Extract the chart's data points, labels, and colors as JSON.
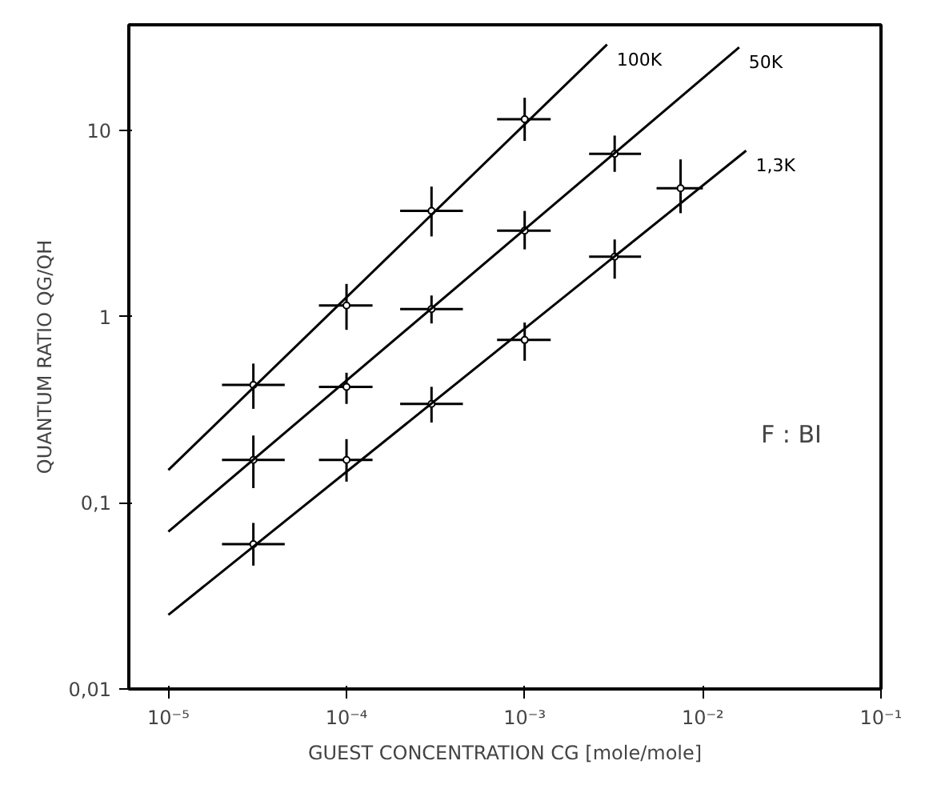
{
  "chart_data": {
    "type": "scatter",
    "xlabel": "GUEST CONCENTRATION CG [mole/mole]",
    "ylabel": "QUANTUM RATIO QG/QH",
    "log": "xy",
    "grid": false,
    "xlim": [
      6e-06,
      0.1
    ],
    "ylim": [
      0.01,
      37
    ],
    "xticks": [
      {
        "value": 1e-05,
        "label": "10⁻⁵"
      },
      {
        "value": 0.0001,
        "label": "10⁻⁴"
      },
      {
        "value": 0.001,
        "label": "10⁻³"
      },
      {
        "value": 0.01,
        "label": "10⁻²"
      },
      {
        "value": 0.1,
        "label": "10⁻¹"
      }
    ],
    "yticks": [
      {
        "value": 0.01,
        "label": "0,01"
      },
      {
        "value": 0.1,
        "label": "0,1"
      },
      {
        "value": 1,
        "label": "1"
      },
      {
        "value": 10,
        "label": "10"
      }
    ],
    "annotations": [
      "F : BI"
    ],
    "series": [
      {
        "color": "#000000",
        "marker": "circle",
        "x": [
          3e-05,
          0.0001,
          0.0003,
          0.001
        ],
        "values": [
          0.43,
          1.15,
          3.7,
          11.5
        ],
        "errors": [
          [
            0.32,
            0.56
          ],
          [
            0.85,
            1.5
          ],
          [
            2.7,
            5
          ],
          [
            8.8,
            15
          ]
        ],
        "xerrors": [
          [
            2e-05,
            4.5e-05
          ],
          [
            7e-05,
            0.00014
          ],
          [
            0.0002,
            0.00045
          ],
          [
            0.0007,
            0.0014
          ]
        ]
      },
      {
        "color": "#000000",
        "marker": "circle",
        "x": [
          3e-05,
          0.0001,
          0.0003,
          0.001,
          0.0032
        ],
        "values": [
          0.17,
          0.42,
          1.1,
          2.9,
          7.5
        ],
        "errors": [
          [
            0.12,
            0.23
          ],
          [
            0.34,
            0.5
          ],
          [
            0.92,
            1.3
          ],
          [
            2.3,
            3.7
          ],
          [
            6,
            9.4
          ]
        ],
        "xerrors": [
          [
            2e-05,
            4.5e-05
          ],
          [
            7e-05,
            0.00014
          ],
          [
            0.0002,
            0.00045
          ],
          [
            0.0007,
            0.0014
          ],
          [
            0.0023,
            0.0045
          ]
        ]
      },
      {
        "color": "#000000",
        "marker": "circle",
        "x": [
          3e-05,
          0.0001,
          0.0003,
          0.001,
          0.0032,
          0.0075
        ],
        "values": [
          0.06,
          0.17,
          0.34,
          0.75,
          2.1,
          4.9
        ],
        "errors": [
          [
            0.046,
            0.078
          ],
          [
            0.13,
            0.22
          ],
          [
            0.27,
            0.42
          ],
          [
            0.58,
            0.93
          ],
          [
            1.6,
            2.6
          ],
          [
            3.6,
            7
          ]
        ],
        "xerrors": [
          [
            2e-05,
            4.5e-05
          ],
          [
            7e-05,
            0.00014
          ],
          [
            0.0002,
            0.00045
          ],
          [
            0.0007,
            0.0014
          ],
          [
            0.0023,
            0.0045
          ],
          [
            0.0055,
            0.01
          ]
        ]
      },
      {
        "type": "line",
        "name": "100K",
        "color": "#000000",
        "line_style": "solid",
        "marker": "none",
        "x": [
          1e-05,
          0.0029
        ],
        "values": [
          0.15,
          29
        ]
      },
      {
        "type": "line",
        "name": "50K",
        "color": "#000000",
        "line_style": "solid",
        "marker": "none",
        "x": [
          1e-05,
          0.016
        ],
        "values": [
          0.07,
          28
        ]
      },
      {
        "type": "line",
        "name": "1,3K",
        "color": "#000000",
        "line_style": "solid",
        "marker": "none",
        "x": [
          1e-05,
          0.0175
        ],
        "values": [
          0.025,
          7.8
        ]
      }
    ]
  }
}
